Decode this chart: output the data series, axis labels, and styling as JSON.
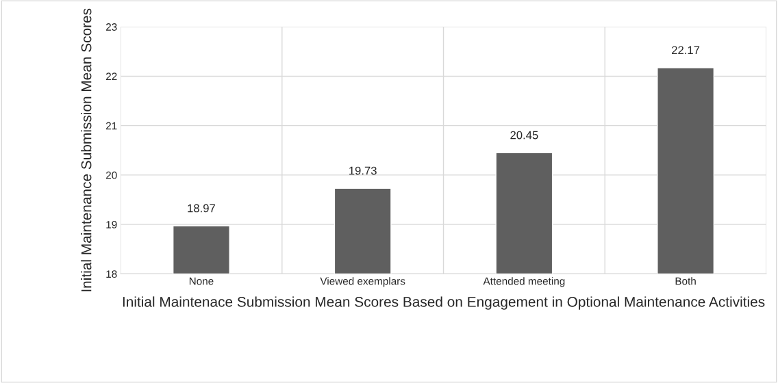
{
  "chart_data": {
    "type": "bar",
    "xlabel": "Initial Maintenace Submission Mean Scores Based on Engagement in Optional Maintenance Activities",
    "ylabel": "Initial Maintenance Submission Mean Scores",
    "categories": [
      "None",
      "Viewed exemplars",
      "Attended meeting",
      "Both"
    ],
    "values": [
      18.97,
      19.73,
      20.45,
      22.17
    ],
    "color": "#5f5f5f",
    "ylim": [
      18,
      23
    ],
    "yticks": [
      18,
      19,
      20,
      21,
      22,
      23
    ],
    "grid": true,
    "data_labels": true
  }
}
